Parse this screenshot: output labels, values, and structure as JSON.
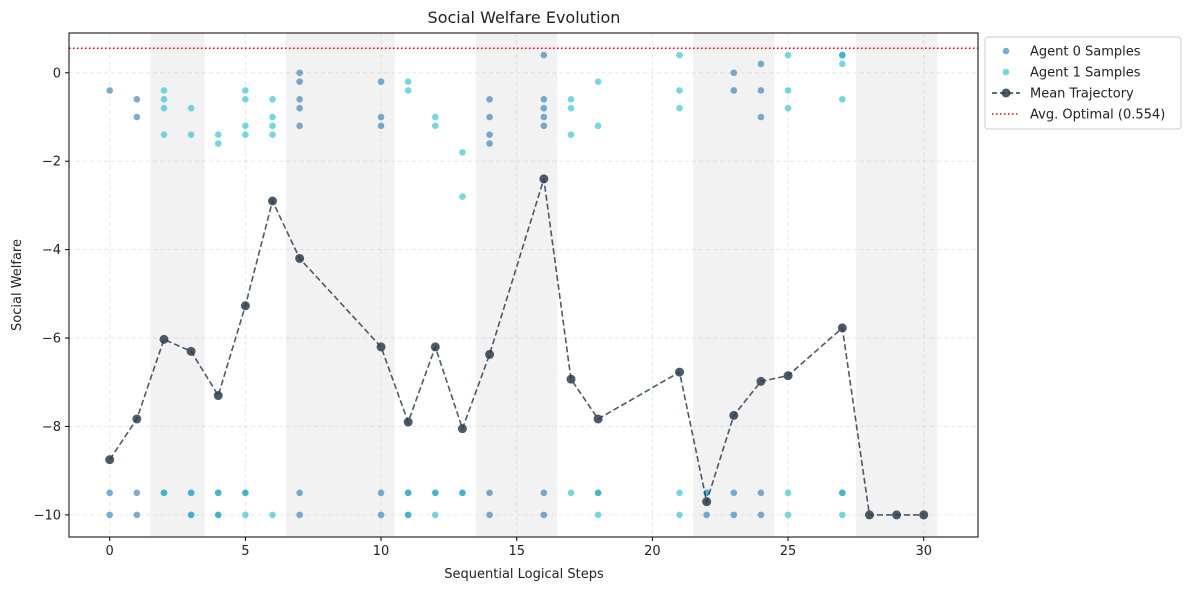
{
  "chart_data": {
    "type": "scatter",
    "title": "Social Welfare Evolution",
    "xlabel": "Sequential Logical Steps",
    "ylabel": "Social Welfare",
    "xlim": [
      -1.5,
      32
    ],
    "ylim": [
      -10.5,
      0.9
    ],
    "xticks": [
      0,
      5,
      10,
      15,
      20,
      25,
      30
    ],
    "yticks": [
      0,
      -2,
      -4,
      -6,
      -8,
      -10
    ],
    "xtick_labels": [
      "0",
      "5",
      "10",
      "15",
      "20",
      "25",
      "30"
    ],
    "ytick_labels": [
      "0",
      "−2",
      "−4",
      "−6",
      "−8",
      "−10"
    ],
    "grid": true,
    "legend_position": "outside-top-right",
    "shaded_regions": [
      [
        1.5,
        3.5
      ],
      [
        6.5,
        10.5
      ],
      [
        13.5,
        16.5
      ],
      [
        21.5,
        24.5
      ],
      [
        27.5,
        30.5
      ]
    ],
    "optimal_line": {
      "label": "Avg. Optimal (0.554)",
      "value": 0.554,
      "color": "#ff0000"
    },
    "colors": {
      "agent0": "#1f77b4",
      "agent1": "#17becf",
      "mean": "#2c3e50"
    },
    "series": [
      {
        "name": "Agent 0 Samples",
        "type": "scatter",
        "points": [
          [
            0,
            -0.4
          ],
          [
            0,
            -9.5
          ],
          [
            0,
            -10
          ],
          [
            1,
            -0.6
          ],
          [
            1,
            -1.0
          ],
          [
            1,
            -9.5
          ],
          [
            1,
            -10
          ],
          [
            2,
            -9.5
          ],
          [
            3,
            -9.5
          ],
          [
            3,
            -10
          ],
          [
            4,
            -9.5
          ],
          [
            4,
            -10
          ],
          [
            5,
            -9.5
          ],
          [
            7,
            0
          ],
          [
            7,
            -0.2
          ],
          [
            7,
            -0.6
          ],
          [
            7,
            -0.8
          ],
          [
            7,
            -1.2
          ],
          [
            7,
            -9.5
          ],
          [
            7,
            -10
          ],
          [
            10,
            -0.2
          ],
          [
            10,
            -1.0
          ],
          [
            10,
            -1.2
          ],
          [
            10,
            -9.5
          ],
          [
            10,
            -10
          ],
          [
            11,
            -9.5
          ],
          [
            11,
            -10
          ],
          [
            12,
            -9.5
          ],
          [
            13,
            -9.5
          ],
          [
            14,
            -0.6
          ],
          [
            14,
            -1.0
          ],
          [
            14,
            -1.4
          ],
          [
            14,
            -1.6
          ],
          [
            14,
            -9.5
          ],
          [
            14,
            -10
          ],
          [
            16,
            0.4
          ],
          [
            16,
            -0.6
          ],
          [
            16,
            -0.8
          ],
          [
            16,
            -1.0
          ],
          [
            16,
            -1.2
          ],
          [
            16,
            -9.5
          ],
          [
            16,
            -10
          ],
          [
            18,
            -9.5
          ],
          [
            22,
            -9.5
          ],
          [
            22,
            -10
          ],
          [
            23,
            0
          ],
          [
            23,
            -0.4
          ],
          [
            23,
            -9.5
          ],
          [
            23,
            -10
          ],
          [
            24,
            0.2
          ],
          [
            24,
            -0.4
          ],
          [
            24,
            -1.0
          ],
          [
            24,
            -9.5
          ],
          [
            24,
            -10
          ],
          [
            27,
            0.4
          ],
          [
            27,
            -9.5
          ]
        ]
      },
      {
        "name": "Agent 1 Samples",
        "type": "scatter",
        "points": [
          [
            2,
            -0.4
          ],
          [
            2,
            -0.6
          ],
          [
            2,
            -0.8
          ],
          [
            2,
            -1.4
          ],
          [
            2,
            -9.5
          ],
          [
            3,
            -0.8
          ],
          [
            3,
            -1.4
          ],
          [
            3,
            -9.5
          ],
          [
            3,
            -10
          ],
          [
            4,
            -1.4
          ],
          [
            4,
            -1.6
          ],
          [
            4,
            -9.5
          ],
          [
            4,
            -10
          ],
          [
            5,
            -0.4
          ],
          [
            5,
            -0.6
          ],
          [
            5,
            -1.2
          ],
          [
            5,
            -1.4
          ],
          [
            5,
            -9.5
          ],
          [
            5,
            -10
          ],
          [
            6,
            -0.6
          ],
          [
            6,
            -1.0
          ],
          [
            6,
            -1.2
          ],
          [
            6,
            -1.4
          ],
          [
            6,
            -10
          ],
          [
            11,
            -0.2
          ],
          [
            11,
            -0.4
          ],
          [
            11,
            -9.5
          ],
          [
            11,
            -10
          ],
          [
            12,
            -1.0
          ],
          [
            12,
            -1.2
          ],
          [
            12,
            -9.5
          ],
          [
            12,
            -10
          ],
          [
            13,
            -1.8
          ],
          [
            13,
            -2.8
          ],
          [
            13,
            -9.5
          ],
          [
            17,
            -0.6
          ],
          [
            17,
            -0.8
          ],
          [
            17,
            -1.4
          ],
          [
            17,
            -9.5
          ],
          [
            18,
            -0.2
          ],
          [
            18,
            -1.2
          ],
          [
            18,
            -9.5
          ],
          [
            18,
            -10
          ],
          [
            21,
            0.4
          ],
          [
            21,
            -0.4
          ],
          [
            21,
            -0.8
          ],
          [
            21,
            -9.5
          ],
          [
            21,
            -10
          ],
          [
            22,
            -9.5
          ],
          [
            25,
            0.4
          ],
          [
            25,
            -0.4
          ],
          [
            25,
            -0.8
          ],
          [
            25,
            -9.5
          ],
          [
            25,
            -10
          ],
          [
            27,
            0.4
          ],
          [
            27,
            0.2
          ],
          [
            27,
            -0.6
          ],
          [
            27,
            -9.5
          ],
          [
            27,
            -10
          ]
        ]
      },
      {
        "name": "Mean Trajectory",
        "type": "line",
        "x": [
          0,
          1,
          2,
          3,
          4,
          5,
          6,
          7,
          10,
          11,
          12,
          13,
          14,
          16,
          17,
          18,
          21,
          22,
          23,
          24,
          25,
          27,
          28,
          29,
          30
        ],
        "y": [
          -8.75,
          -7.83,
          -6.03,
          -6.3,
          -7.3,
          -5.27,
          -2.9,
          -4.2,
          -6.2,
          -7.9,
          -6.2,
          -8.05,
          -6.37,
          -2.4,
          -6.93,
          -7.83,
          -6.77,
          -9.7,
          -7.75,
          -6.98,
          -6.85,
          -5.77,
          -10,
          -10,
          -10
        ]
      }
    ]
  }
}
